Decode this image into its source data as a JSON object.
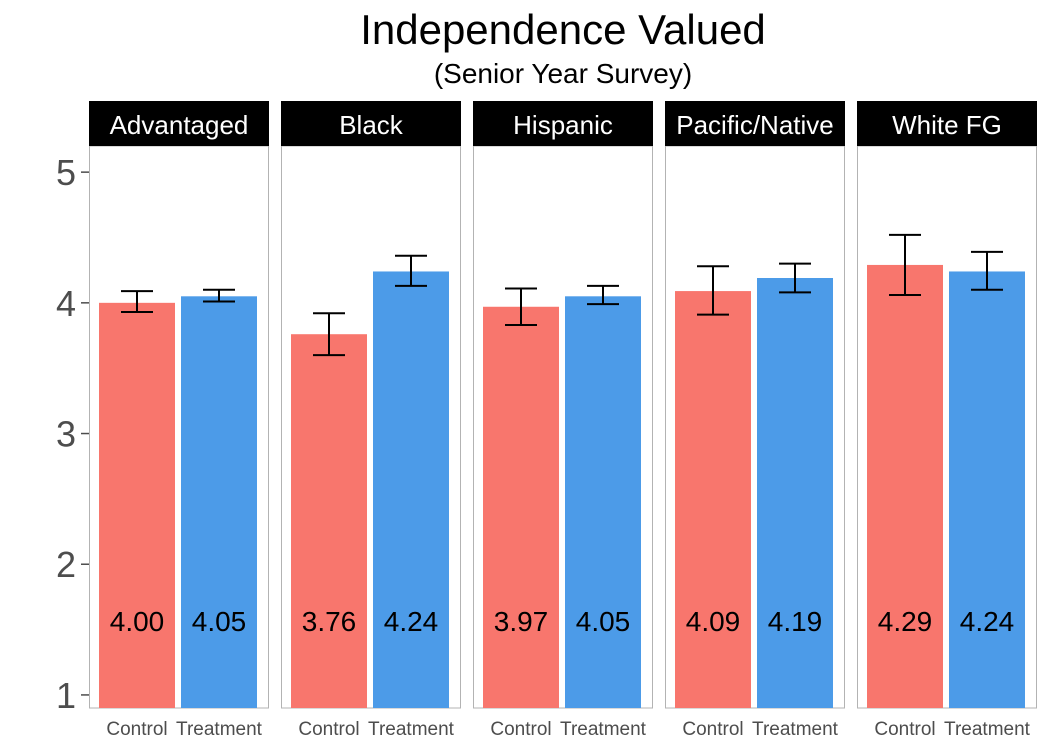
{
  "chart_data": {
    "type": "bar",
    "title": "Independence Valued",
    "subtitle": "(Senior Year Survey)",
    "xlabel": "",
    "ylabel": "",
    "ylim": [
      0.9,
      5.2
    ],
    "yticks": [
      1,
      2,
      3,
      4,
      5
    ],
    "grid": false,
    "categories": [
      "Control",
      "Treatment"
    ],
    "colors": {
      "Control": "#F8766D",
      "Treatment": "#4C9BE8"
    },
    "panels": [
      {
        "name": "Advantaged",
        "values": [
          4.0,
          4.05
        ],
        "labels": [
          "4.00",
          "4.05"
        ],
        "error_low": [
          3.93,
          4.01
        ],
        "error_high": [
          4.09,
          4.1
        ]
      },
      {
        "name": "Black",
        "values": [
          3.76,
          4.24
        ],
        "labels": [
          "3.76",
          "4.24"
        ],
        "error_low": [
          3.6,
          4.13
        ],
        "error_high": [
          3.92,
          4.36
        ]
      },
      {
        "name": "Hispanic",
        "values": [
          3.97,
          4.05
        ],
        "labels": [
          "3.97",
          "4.05"
        ],
        "error_low": [
          3.83,
          3.99
        ],
        "error_high": [
          4.11,
          4.13
        ]
      },
      {
        "name": "Pacific/Native",
        "values": [
          4.09,
          4.19
        ],
        "labels": [
          "4.09",
          "4.19"
        ],
        "error_low": [
          3.91,
          4.08
        ],
        "error_high": [
          4.28,
          4.3
        ]
      },
      {
        "name": "White FG",
        "values": [
          4.29,
          4.24
        ],
        "labels": [
          "4.29",
          "4.24"
        ],
        "error_low": [
          4.06,
          4.1
        ],
        "error_high": [
          4.52,
          4.39
        ]
      }
    ]
  }
}
